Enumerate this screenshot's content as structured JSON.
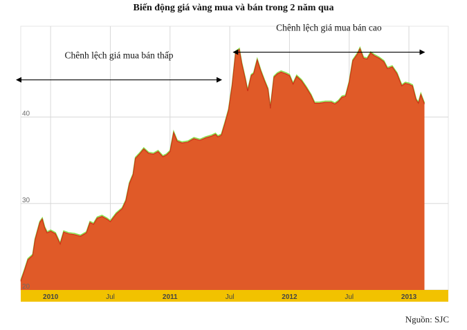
{
  "title": "Biến động giá vàng mua và bán trong 2 năm qua",
  "source": "Nguồn: SJC",
  "chart_data": {
    "type": "area",
    "title": "Biến động giá vàng mua và bán trong 2 năm qua",
    "xlabel": "",
    "ylabel": "",
    "ylim": [
      20,
      50.5
    ],
    "xlim": [
      2009.75,
      2013.33
    ],
    "yticks": [
      20,
      30,
      40
    ],
    "xticks": [
      {
        "x": 2010.0,
        "label": "2010",
        "bold": true
      },
      {
        "x": 2010.5,
        "label": "Jul",
        "bold": false
      },
      {
        "x": 2011.0,
        "label": "2011",
        "bold": true
      },
      {
        "x": 2011.5,
        "label": "Jul",
        "bold": false
      },
      {
        "x": 2012.0,
        "label": "2012",
        "bold": true
      },
      {
        "x": 2012.5,
        "label": "Jul",
        "bold": false
      },
      {
        "x": 2013.0,
        "label": "2013",
        "bold": true
      }
    ],
    "grid": true,
    "colors": {
      "fill": "#e05a28",
      "sell_line": "#8ae04a",
      "buy_line": "#cc2e16",
      "axis_band": "#f2c200",
      "grid": "#d8d8d8"
    },
    "series": [
      {
        "points": [
          [
            2009.75,
            21.0
          ],
          [
            2009.78,
            22.2
          ],
          [
            2009.81,
            23.5
          ],
          [
            2009.85,
            24.0
          ],
          [
            2009.87,
            25.8
          ],
          [
            2009.91,
            27.8
          ],
          [
            2009.93,
            28.2
          ],
          [
            2009.95,
            27.2
          ],
          [
            2009.97,
            26.6
          ],
          [
            2010.0,
            26.8
          ],
          [
            2010.04,
            26.5
          ],
          [
            2010.08,
            25.3
          ],
          [
            2010.11,
            26.7
          ],
          [
            2010.15,
            26.5
          ],
          [
            2010.2,
            26.4
          ],
          [
            2010.25,
            26.2
          ],
          [
            2010.3,
            26.6
          ],
          [
            2010.33,
            27.8
          ],
          [
            2010.36,
            27.6
          ],
          [
            2010.39,
            28.3
          ],
          [
            2010.43,
            28.5
          ],
          [
            2010.47,
            28.2
          ],
          [
            2010.5,
            27.9
          ],
          [
            2010.55,
            28.8
          ],
          [
            2010.6,
            29.4
          ],
          [
            2010.63,
            30.3
          ],
          [
            2010.66,
            32.3
          ],
          [
            2010.69,
            33.3
          ],
          [
            2010.71,
            35.2
          ],
          [
            2010.75,
            35.8
          ],
          [
            2010.78,
            36.3
          ],
          [
            2010.82,
            35.8
          ],
          [
            2010.86,
            35.7
          ],
          [
            2010.9,
            36.0
          ],
          [
            2010.94,
            35.4
          ],
          [
            2010.97,
            35.6
          ],
          [
            2011.0,
            36.0
          ],
          [
            2011.03,
            38.2
          ],
          [
            2011.06,
            37.2
          ],
          [
            2011.1,
            37.0
          ],
          [
            2011.15,
            37.1
          ],
          [
            2011.2,
            37.5
          ],
          [
            2011.25,
            37.3
          ],
          [
            2011.3,
            37.6
          ],
          [
            2011.35,
            37.8
          ],
          [
            2011.38,
            38.0
          ],
          [
            2011.4,
            37.7
          ],
          [
            2011.43,
            37.9
          ],
          [
            2011.46,
            39.3
          ],
          [
            2011.49,
            40.8
          ],
          [
            2011.52,
            43.6
          ],
          [
            2011.55,
            47.5
          ],
          [
            2011.58,
            47.8
          ],
          [
            2011.6,
            46.2
          ],
          [
            2011.63,
            44.4
          ],
          [
            2011.65,
            43.0
          ],
          [
            2011.68,
            44.8
          ],
          [
            2011.7,
            45.0
          ],
          [
            2011.73,
            46.6
          ],
          [
            2011.76,
            45.3
          ],
          [
            2011.79,
            44.2
          ],
          [
            2011.82,
            43.2
          ],
          [
            2011.84,
            41.0
          ],
          [
            2011.87,
            44.6
          ],
          [
            2011.9,
            45.0
          ],
          [
            2011.93,
            45.2
          ],
          [
            2011.97,
            45.0
          ],
          [
            2012.0,
            44.8
          ],
          [
            2012.03,
            43.8
          ],
          [
            2012.06,
            44.7
          ],
          [
            2012.1,
            44.2
          ],
          [
            2012.14,
            43.4
          ],
          [
            2012.18,
            42.5
          ],
          [
            2012.21,
            41.6
          ],
          [
            2012.25,
            41.6
          ],
          [
            2012.3,
            41.7
          ],
          [
            2012.35,
            41.7
          ],
          [
            2012.38,
            41.5
          ],
          [
            2012.41,
            41.8
          ],
          [
            2012.44,
            42.3
          ],
          [
            2012.47,
            42.4
          ],
          [
            2012.5,
            44.0
          ],
          [
            2012.53,
            46.5
          ],
          [
            2012.57,
            47.3
          ],
          [
            2012.59,
            47.9
          ],
          [
            2012.62,
            46.8
          ],
          [
            2012.65,
            46.7
          ],
          [
            2012.68,
            47.4
          ],
          [
            2012.71,
            47.1
          ],
          [
            2012.75,
            46.8
          ],
          [
            2012.79,
            46.4
          ],
          [
            2012.82,
            45.6
          ],
          [
            2012.86,
            45.8
          ],
          [
            2012.9,
            45.0
          ],
          [
            2012.94,
            43.6
          ],
          [
            2012.97,
            43.9
          ],
          [
            2013.0,
            43.8
          ],
          [
            2013.03,
            43.6
          ],
          [
            2013.06,
            42.0
          ],
          [
            2013.08,
            41.6
          ],
          [
            2013.1,
            42.6
          ],
          [
            2013.13,
            41.5
          ]
        ]
      }
    ],
    "annotations": [
      {
        "text": "Chênh lệch giá mua bán thấp",
        "arrow_from": 2009.75,
        "arrow_to": 2011.43,
        "arrow_y": 44.3
      },
      {
        "text": "Chênh lệch giá mua bán cao",
        "arrow_from": 2011.53,
        "arrow_to": 2013.13,
        "arrow_y": 47.5
      }
    ]
  }
}
